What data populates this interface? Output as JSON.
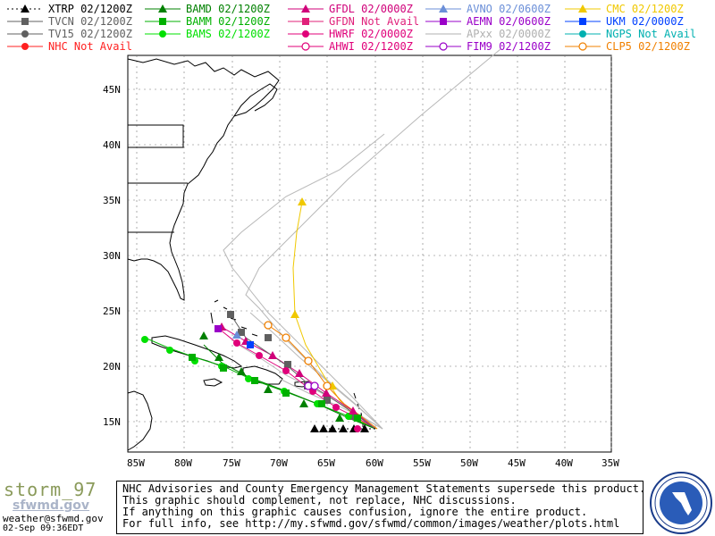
{
  "legend": [
    {
      "label": "XTRP",
      "time": "02/1200Z",
      "color": "#000000",
      "marker": "triangle",
      "dashed": true
    },
    {
      "label": "TVCN",
      "time": "02/1200Z",
      "color": "#606060",
      "marker": "square"
    },
    {
      "label": "TV15",
      "time": "02/1200Z",
      "color": "#606060",
      "marker": "circle"
    },
    {
      "label": "NHC",
      "time": "Not Avail",
      "color": "#ff2020",
      "marker": "circle"
    },
    {
      "label": "BAMD",
      "time": "02/1200Z",
      "color": "#008000",
      "marker": "triangle"
    },
    {
      "label": "BAMM",
      "time": "02/1200Z",
      "color": "#00b000",
      "marker": "square"
    },
    {
      "label": "BAMS",
      "time": "02/1200Z",
      "color": "#00e000",
      "marker": "circle"
    },
    {
      "label": "GFDL",
      "time": "02/0000Z",
      "color": "#d0007a",
      "marker": "triangle"
    },
    {
      "label": "GFDN",
      "time": "Not Avail",
      "color": "#e0207a",
      "marker": "square"
    },
    {
      "label": "HWRF",
      "time": "02/0000Z",
      "color": "#e0007a",
      "marker": "circle"
    },
    {
      "label": "AHWI",
      "time": "02/1200Z",
      "color": "#e0007a",
      "marker": "letterO"
    },
    {
      "label": "AVNO",
      "time": "02/0600Z",
      "color": "#6b8fd8",
      "marker": "triangle"
    },
    {
      "label": "AEMN",
      "time": "02/0600Z",
      "color": "#9a00c8",
      "marker": "square"
    },
    {
      "label": "APxx",
      "time": "02/0000Z",
      "color": "#b0b0b0",
      "marker": "line"
    },
    {
      "label": "FIM9",
      "time": "02/1200Z",
      "color": "#9a00c8",
      "marker": "letterO"
    },
    {
      "label": "CMC",
      "time": "02/1200Z",
      "color": "#f0c800",
      "marker": "triangle"
    },
    {
      "label": "UKM",
      "time": "02/0000Z",
      "color": "#0040ff",
      "marker": "square"
    },
    {
      "label": "NGPS",
      "time": "Not Avail",
      "color": "#00b0b0",
      "marker": "circle"
    },
    {
      "label": "CLP5",
      "time": "02/1200Z",
      "color": "#f08000",
      "marker": "letterO"
    }
  ],
  "map": {
    "lat_labels": [
      "45N",
      "40N",
      "35N",
      "30N",
      "25N",
      "20N",
      "15N"
    ],
    "lon_labels": [
      "85W",
      "80W",
      "75W",
      "70W",
      "65W",
      "60W",
      "55W",
      "50W",
      "45W",
      "40W",
      "35W"
    ]
  },
  "footer": {
    "brand": "storm_97",
    "brand_site": "sfwmd.gov",
    "email": "weather@sfwmd.gov",
    "stamp": "02-Sep 09:36EDT",
    "disclaimer": [
      "NHC Advisories and County Emergency Management Statements supersede this product.",
      "This graphic should complement, not replace, NHC discussions.",
      "If anything on this graphic causes confusion, ignore the entire product.",
      "For full info, see  http://my.sfwmd.gov/sfwmd/common/images/weather/plots.html"
    ],
    "seal_text": "SOUTH FLORIDA WATER MANAGEMENT DISTRICT"
  }
}
